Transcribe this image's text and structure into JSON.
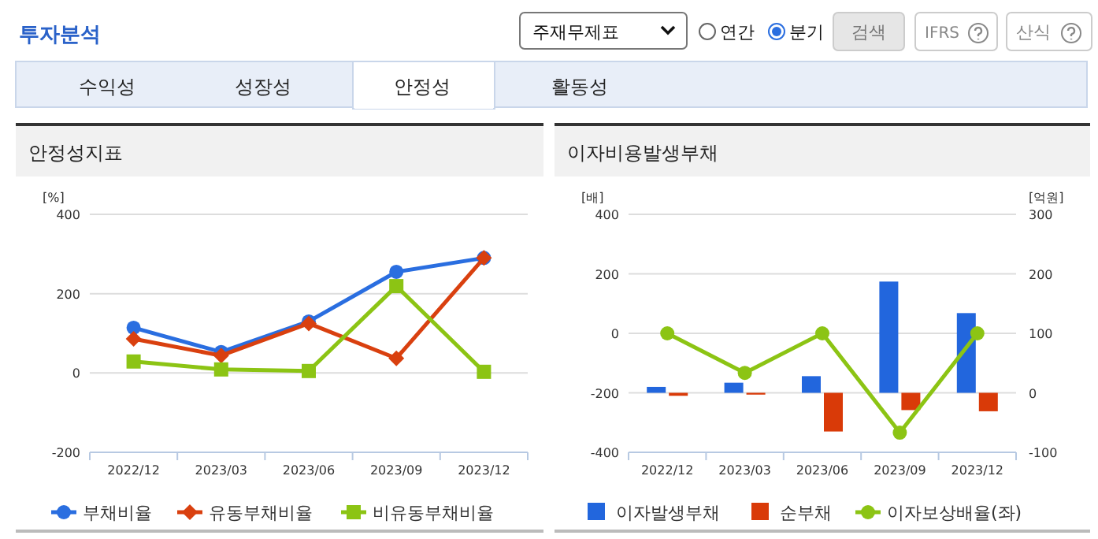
{
  "chart_data": [
    {
      "type": "line",
      "title": "안정성지표",
      "ylabel": "[%]",
      "categories": [
        "2022/12",
        "2023/03",
        "2023/06",
        "2023/09",
        "2023/12"
      ],
      "ylim": [
        -200,
        400
      ],
      "yticks": [
        -200,
        0,
        200,
        400
      ],
      "grid": "y",
      "legend": "bottom",
      "series": [
        {
          "name": "부채비율",
          "color": "#2a6ee0",
          "marker": "circle",
          "values": [
            114,
            53,
            130,
            255,
            290
          ]
        },
        {
          "name": "유동부채비율",
          "color": "#d9400f",
          "marker": "diamond",
          "values": [
            86,
            44,
            125,
            37,
            290
          ]
        },
        {
          "name": "비유동부채비율",
          "color": "#8cc414",
          "marker": "square",
          "values": [
            29,
            9,
            5,
            219,
            3
          ]
        }
      ],
      "annotations": [
        "투자분석",
        "주재무제표",
        "연간",
        "분기",
        "검색",
        "IFRS",
        "산식",
        "수익성",
        "성장성",
        "안정성",
        "활동성"
      ]
    },
    {
      "type": "bar",
      "title": "이자비용발생부채",
      "ylabel": "[배]",
      "y2label": "[억원]",
      "categories": [
        "2022/12",
        "2023/03",
        "2023/06",
        "2023/09",
        "2023/12"
      ],
      "ylim": [
        -400,
        400
      ],
      "yticks": [
        -400,
        -200,
        0,
        200,
        400
      ],
      "y2lim": [
        -100,
        300
      ],
      "y2ticks": [
        -100,
        0,
        100,
        200,
        300
      ],
      "grid": "y",
      "legend": "bottom",
      "series": [
        {
          "name": "이자발생부채",
          "color": "#2266dd",
          "axis": "y2",
          "values": [
            10,
            17,
            28,
            187,
            134
          ]
        },
        {
          "name": "순부채",
          "color": "#d93a08",
          "axis": "y2",
          "values": [
            -5,
            -3,
            -65,
            -29,
            -31
          ]
        },
        {
          "name": "이자보상배율(좌)",
          "type": "line",
          "color": "#8cc414",
          "marker": "circle",
          "axis": "y",
          "values": [
            0,
            -133,
            0,
            -334,
            0
          ]
        }
      ]
    }
  ]
}
